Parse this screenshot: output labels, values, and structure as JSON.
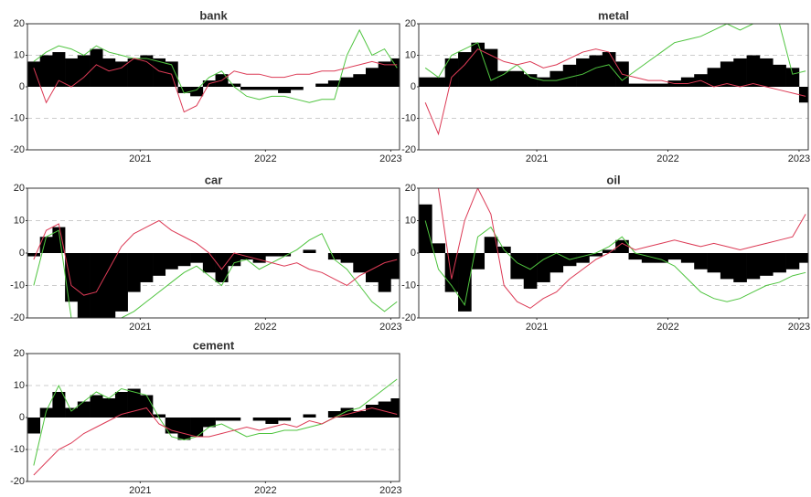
{
  "chart_data": [
    {
      "type": "line",
      "title": "bank",
      "x": [
        2020.15,
        2020.25,
        2020.35,
        2020.45,
        2020.55,
        2020.65,
        2020.75,
        2020.85,
        2020.95,
        2021.05,
        2021.15,
        2021.25,
        2021.35,
        2021.45,
        2021.55,
        2021.65,
        2021.75,
        2021.85,
        2021.95,
        2022.05,
        2022.15,
        2022.25,
        2022.35,
        2022.45,
        2022.55,
        2022.65,
        2022.75,
        2022.85,
        2022.95,
        2023.05
      ],
      "series": [
        {
          "type": "bar",
          "color": "#000000",
          "values": [
            8,
            10,
            11,
            9,
            10,
            12,
            9,
            8,
            9,
            10,
            9,
            8,
            -2,
            -3,
            2,
            4,
            1,
            -1,
            -1,
            -1,
            -2,
            -1,
            0,
            1,
            2,
            3,
            4,
            6,
            8,
            9
          ]
        },
        {
          "color": "#4fc43f",
          "values": [
            8,
            11,
            13,
            12,
            10,
            13,
            11,
            10,
            9,
            9,
            8,
            7,
            -2,
            -1,
            3,
            5,
            0,
            -3,
            -4,
            -3,
            -3,
            -4,
            -5,
            -4,
            -4,
            10,
            18,
            10,
            12,
            6
          ]
        },
        {
          "color": "#dc3a55",
          "values": [
            6,
            -5,
            2,
            0,
            3,
            7,
            5,
            6,
            9,
            8,
            5,
            4,
            -8,
            -6,
            1,
            2,
            5,
            4,
            4,
            3,
            3,
            4,
            4,
            5,
            5,
            6,
            7,
            8,
            7,
            7
          ]
        }
      ],
      "xlim": [
        2020.1,
        2023.07
      ],
      "xticks": [
        2021,
        2022,
        2023
      ],
      "ylim": [
        -20,
        20
      ],
      "yticks": [
        -20,
        -10,
        0,
        10,
        20
      ],
      "grid": true
    },
    {
      "type": "line",
      "title": "metal",
      "x": [
        2020.15,
        2020.25,
        2020.35,
        2020.45,
        2020.55,
        2020.65,
        2020.75,
        2020.85,
        2020.95,
        2021.05,
        2021.15,
        2021.25,
        2021.35,
        2021.45,
        2021.55,
        2021.65,
        2021.75,
        2021.85,
        2021.95,
        2022.05,
        2022.15,
        2022.25,
        2022.35,
        2022.45,
        2022.55,
        2022.65,
        2022.75,
        2022.85,
        2022.95,
        2023.05
      ],
      "series": [
        {
          "type": "bar",
          "color": "#000000",
          "values": [
            3,
            3,
            9,
            11,
            14,
            12,
            5,
            5,
            4,
            3,
            5,
            7,
            9,
            10,
            11,
            8,
            1,
            1,
            1,
            2,
            3,
            4,
            6,
            8,
            9,
            10,
            9,
            7,
            6,
            -5
          ]
        },
        {
          "color": "#4fc43f",
          "values": [
            6,
            3,
            10,
            12,
            14,
            2,
            4,
            7,
            3,
            2,
            2,
            3,
            4,
            6,
            7,
            2,
            5,
            8,
            11,
            14,
            15,
            16,
            18,
            20,
            18,
            20,
            20,
            20,
            4,
            5
          ]
        },
        {
          "color": "#dc3a55",
          "values": [
            -5,
            -15,
            3,
            7,
            12,
            10,
            8,
            7,
            8,
            6,
            7,
            9,
            11,
            12,
            11,
            4,
            3,
            2,
            2,
            1,
            1,
            2,
            0,
            1,
            0,
            1,
            0,
            -1,
            -2,
            -3
          ]
        }
      ],
      "xlim": [
        2020.1,
        2023.07
      ],
      "xticks": [
        2021,
        2022,
        2023
      ],
      "ylim": [
        -20,
        20
      ],
      "yticks": [
        -20,
        -10,
        0,
        10,
        20
      ],
      "grid": true
    },
    {
      "type": "line",
      "title": "car",
      "x": [
        2020.15,
        2020.25,
        2020.35,
        2020.45,
        2020.55,
        2020.65,
        2020.75,
        2020.85,
        2020.95,
        2021.05,
        2021.15,
        2021.25,
        2021.35,
        2021.45,
        2021.55,
        2021.65,
        2021.75,
        2021.85,
        2021.95,
        2022.05,
        2022.15,
        2022.25,
        2022.35,
        2022.45,
        2022.55,
        2022.65,
        2022.75,
        2022.85,
        2022.95,
        2023.05
      ],
      "series": [
        {
          "type": "bar",
          "color": "#000000",
          "values": [
            -1,
            5,
            8,
            -15,
            -20,
            -20,
            -20,
            -18,
            -12,
            -9,
            -7,
            -5,
            -4,
            -3,
            -6,
            -9,
            -4,
            -2,
            -3,
            -1,
            -1,
            0,
            1,
            0,
            -2,
            -3,
            -6,
            -9,
            -12,
            -8
          ]
        },
        {
          "color": "#4fc43f",
          "values": [
            -10,
            5,
            7,
            -20,
            -20,
            -20,
            -20,
            -20,
            -18,
            -15,
            -12,
            -9,
            -6,
            -4,
            -7,
            -10,
            -3,
            -2,
            -5,
            -3,
            -1,
            1,
            4,
            6,
            -2,
            -5,
            -10,
            -15,
            -18,
            -15
          ]
        },
        {
          "color": "#dc3a55",
          "values": [
            -2,
            7,
            9,
            -10,
            -13,
            -12,
            -5,
            2,
            6,
            8,
            10,
            7,
            5,
            3,
            0,
            -5,
            0,
            -1,
            -2,
            -3,
            -4,
            -3,
            -5,
            -6,
            -8,
            -10,
            -7,
            -5,
            -3,
            -2
          ]
        }
      ],
      "xlim": [
        2020.1,
        2023.07
      ],
      "xticks": [
        2021,
        2022,
        2023
      ],
      "ylim": [
        -20,
        20
      ],
      "yticks": [
        -20,
        -10,
        0,
        10,
        20
      ],
      "grid": true
    },
    {
      "type": "line",
      "title": "oil",
      "x": [
        2020.15,
        2020.25,
        2020.35,
        2020.45,
        2020.55,
        2020.65,
        2020.75,
        2020.85,
        2020.95,
        2021.05,
        2021.15,
        2021.25,
        2021.35,
        2021.45,
        2021.55,
        2021.65,
        2021.75,
        2021.85,
        2021.95,
        2022.05,
        2022.15,
        2022.25,
        2022.35,
        2022.45,
        2022.55,
        2022.65,
        2022.75,
        2022.85,
        2022.95,
        2023.05
      ],
      "series": [
        {
          "type": "bar",
          "color": "#000000",
          "values": [
            15,
            3,
            -12,
            -18,
            -5,
            5,
            2,
            -8,
            -11,
            -9,
            -6,
            -4,
            -3,
            -1,
            1,
            4,
            -2,
            -3,
            -3,
            -2,
            -3,
            -5,
            -6,
            -8,
            -9,
            -8,
            -7,
            -6,
            -5,
            -3
          ]
        },
        {
          "color": "#4fc43f",
          "values": [
            10,
            -5,
            -10,
            -16,
            5,
            8,
            1,
            -3,
            -5,
            -2,
            0,
            -2,
            -1,
            0,
            2,
            5,
            0,
            -1,
            -2,
            -4,
            -8,
            -12,
            -14,
            -15,
            -14,
            -12,
            -10,
            -9,
            -7,
            -6
          ]
        },
        {
          "color": "#dc3a55",
          "values": [
            20,
            20,
            -8,
            10,
            20,
            12,
            -10,
            -15,
            -17,
            -14,
            -12,
            -8,
            -5,
            -2,
            0,
            3,
            1,
            2,
            3,
            4,
            3,
            2,
            3,
            2,
            1,
            2,
            3,
            4,
            5,
            12
          ]
        }
      ],
      "xlim": [
        2020.1,
        2023.07
      ],
      "xticks": [
        2021,
        2022,
        2023
      ],
      "ylim": [
        -20,
        20
      ],
      "yticks": [
        -20,
        -10,
        0,
        10,
        20
      ],
      "grid": true
    },
    {
      "type": "line",
      "title": "cement",
      "x": [
        2020.15,
        2020.25,
        2020.35,
        2020.45,
        2020.55,
        2020.65,
        2020.75,
        2020.85,
        2020.95,
        2021.05,
        2021.15,
        2021.25,
        2021.35,
        2021.45,
        2021.55,
        2021.65,
        2021.75,
        2021.85,
        2021.95,
        2022.05,
        2022.15,
        2022.25,
        2022.35,
        2022.45,
        2022.55,
        2022.65,
        2022.75,
        2022.85,
        2022.95,
        2023.05
      ],
      "series": [
        {
          "type": "bar",
          "color": "#000000",
          "values": [
            -5,
            3,
            8,
            3,
            5,
            7,
            6,
            8,
            9,
            7,
            1,
            -5,
            -7,
            -6,
            -3,
            -1,
            -1,
            0,
            -1,
            -2,
            -1,
            0,
            1,
            0,
            2,
            3,
            2,
            4,
            5,
            6
          ]
        },
        {
          "color": "#4fc43f",
          "values": [
            -15,
            2,
            10,
            2,
            5,
            8,
            6,
            9,
            8,
            7,
            0,
            -6,
            -7,
            -6,
            -3,
            -2,
            -4,
            -6,
            -5,
            -5,
            -4,
            -4,
            -3,
            -2,
            0,
            2,
            3,
            6,
            9,
            12
          ]
        },
        {
          "color": "#dc3a55",
          "values": [
            -18,
            -14,
            -10,
            -8,
            -5,
            -3,
            -1,
            1,
            2,
            3,
            -2,
            -4,
            -5,
            -6,
            -6,
            -5,
            -4,
            -3,
            -4,
            -3,
            -2,
            -3,
            -1,
            -2,
            0,
            1,
            2,
            3,
            2,
            1
          ]
        }
      ],
      "xlim": [
        2020.1,
        2023.07
      ],
      "xticks": [
        2021,
        2022,
        2023
      ],
      "ylim": [
        -20,
        20
      ],
      "yticks": [
        -20,
        -10,
        0,
        10,
        20
      ],
      "grid": true
    }
  ]
}
